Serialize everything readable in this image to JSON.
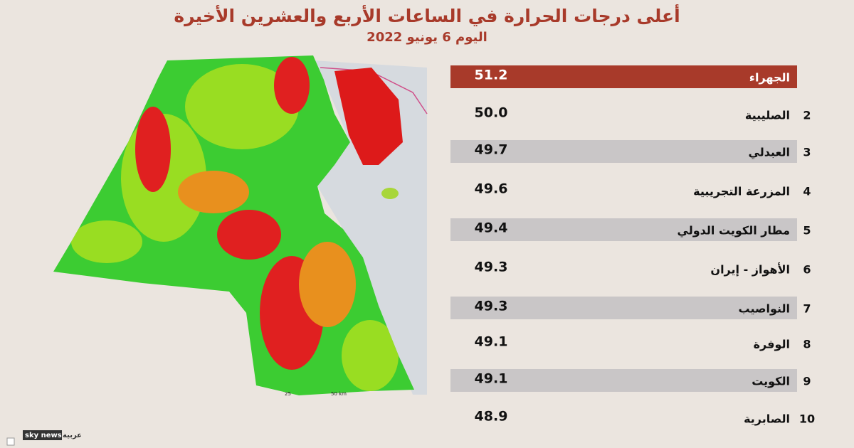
{
  "header": {
    "title": "أعلى درجات الحرارة في الساعات الأربع والعشرين الأخيرة",
    "subtitle": "اليوم 6 يونيو 2022"
  },
  "table": {
    "rows": [
      {
        "rank": null,
        "name": "الجهراء",
        "value": "51.2"
      },
      {
        "rank": "2",
        "name": "الصليبية",
        "value": "50.0"
      },
      {
        "rank": "3",
        "name": "العبدلي",
        "value": "49.7"
      },
      {
        "rank": "4",
        "name": "المزرعة التجريبية",
        "value": "49.6"
      },
      {
        "rank": "5",
        "name": "مطار الكويت الدولي",
        "value": "49.4"
      },
      {
        "rank": "6",
        "name": "الأهواز  - إيران",
        "value": "49.3"
      },
      {
        "rank": "7",
        "name": "النواصيب",
        "value": "49.3"
      },
      {
        "rank": "8",
        "name": "الوفرة",
        "value": "49.1"
      },
      {
        "rank": "9",
        "name": "الكويت",
        "value": "49.1"
      },
      {
        "rank": "10",
        "name": "الصابرية",
        "value": "48.9"
      }
    ]
  },
  "map": {
    "scale": [
      "25",
      "50 km"
    ]
  },
  "logo": {
    "brand": "sky news",
    "script": "عربية"
  }
}
